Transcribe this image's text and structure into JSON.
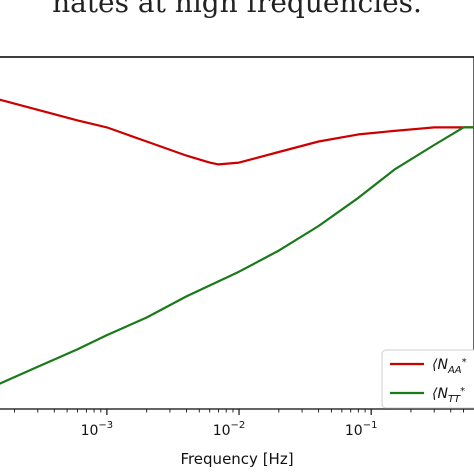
{
  "caption": "nates at high frequencies.",
  "chart_data": {
    "type": "line",
    "xlabel": "Frequency [Hz]",
    "ylabel": "",
    "xscale": "log",
    "xlim": [
      0.00015,
      0.6
    ],
    "ylim": [
      0.0,
      1.0
    ],
    "grid": false,
    "legend_position": "bottom-right",
    "xticks": [
      {
        "value": 0.001,
        "base": "10",
        "exp": "−3"
      },
      {
        "value": 0.01,
        "base": "10",
        "exp": "−2"
      },
      {
        "value": 0.1,
        "base": "10",
        "exp": "−1"
      }
    ],
    "series": [
      {
        "name": "⟨N_AA*",
        "color": "#cc0000",
        "x": [
          0.00015,
          0.0003,
          0.0006,
          0.001,
          0.002,
          0.004,
          0.006,
          0.007,
          0.01,
          0.02,
          0.04,
          0.08,
          0.15,
          0.3,
          0.5,
          0.6
        ],
        "y": [
          0.88,
          0.85,
          0.82,
          0.8,
          0.76,
          0.72,
          0.7,
          0.695,
          0.7,
          0.73,
          0.76,
          0.78,
          0.79,
          0.8,
          0.8,
          0.8
        ]
      },
      {
        "name": "⟨N_TT*",
        "color": "#1a7a1a",
        "x": [
          0.00015,
          0.0003,
          0.0006,
          0.001,
          0.002,
          0.004,
          0.01,
          0.02,
          0.04,
          0.08,
          0.15,
          0.3,
          0.5,
          0.6
        ],
        "y": [
          0.07,
          0.12,
          0.17,
          0.21,
          0.26,
          0.32,
          0.39,
          0.45,
          0.52,
          0.6,
          0.68,
          0.75,
          0.8,
          0.8
        ]
      }
    ]
  }
}
